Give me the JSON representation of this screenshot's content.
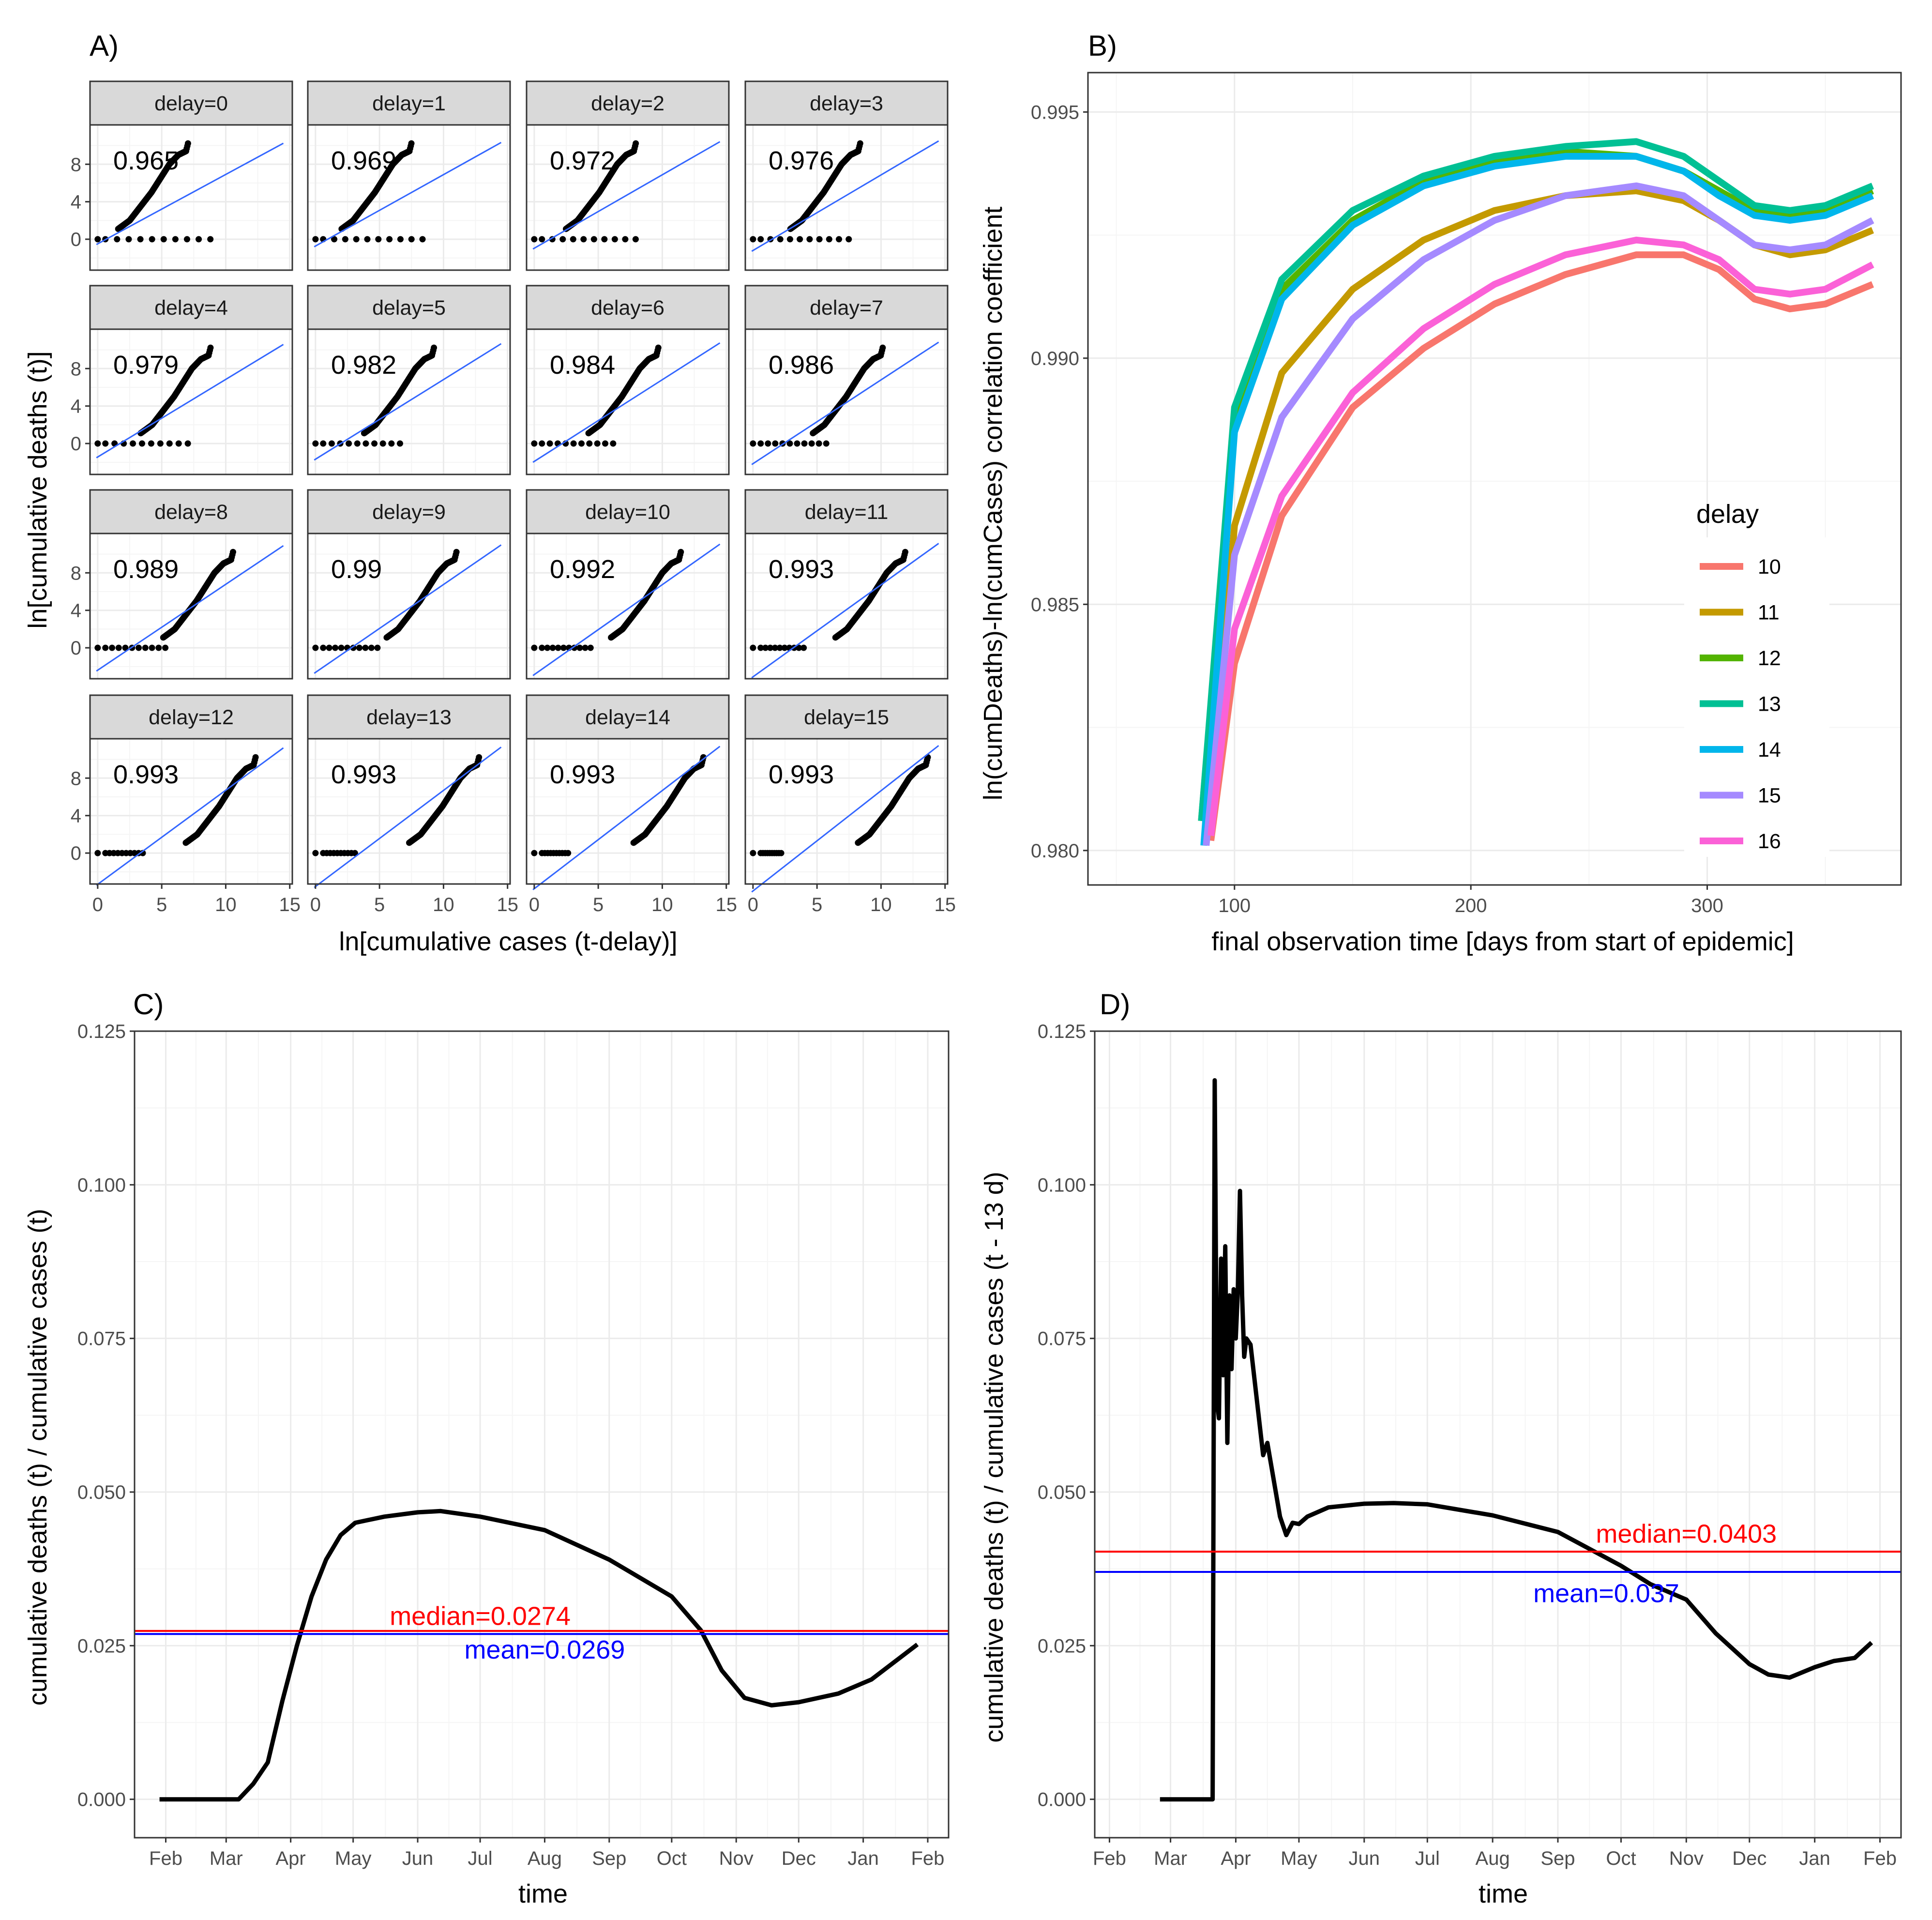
{
  "panel_labels": [
    "A)",
    "B)",
    "C)",
    "D)"
  ],
  "colors": {
    "grid_major": "#ebebeb",
    "grid_minor": "#f5f5f5",
    "frame": "#333333",
    "tick_text": "#4d4d4d",
    "strip_fill": "#d9d9d9",
    "fit_line": "#3366ff",
    "median": "#ff0000",
    "mean": "#0000ff"
  },
  "chart_data": [
    {
      "id": "A",
      "type": "scatter",
      "facet_var": "delay",
      "xlabel": "ln[cumulative cases (t-delay)]",
      "ylabel": "ln[cumulative deaths (t)]",
      "xlim": [
        -0.6,
        15.2
      ],
      "ylim": [
        -3.3,
        12.2
      ],
      "x_ticks": [
        0,
        5,
        10,
        15
      ],
      "y_ticks": [
        0,
        4,
        8
      ],
      "facets": [
        {
          "strip": "delay=0",
          "r": "0.965",
          "delay": 0
        },
        {
          "strip": "delay=1",
          "r": "0.969",
          "delay": 1
        },
        {
          "strip": "delay=2",
          "r": "0.972",
          "delay": 2
        },
        {
          "strip": "delay=3",
          "r": "0.976",
          "delay": 3
        },
        {
          "strip": "delay=4",
          "r": "0.979",
          "delay": 4
        },
        {
          "strip": "delay=5",
          "r": "0.982",
          "delay": 5
        },
        {
          "strip": "delay=6",
          "r": "0.984",
          "delay": 6
        },
        {
          "strip": "delay=7",
          "r": "0.986",
          "delay": 7
        },
        {
          "strip": "delay=8",
          "r": "0.989",
          "delay": 8
        },
        {
          "strip": "delay=9",
          "r": "0.99",
          "delay": 9
        },
        {
          "strip": "delay=10",
          "r": "0.992",
          "delay": 10
        },
        {
          "strip": "delay=11",
          "r": "0.993",
          "delay": 11
        },
        {
          "strip": "delay=12",
          "r": "0.993",
          "delay": 12
        },
        {
          "strip": "delay=13",
          "r": "0.993",
          "delay": 13
        },
        {
          "strip": "delay=14",
          "r": "0.993",
          "delay": 14
        },
        {
          "strip": "delay=15",
          "r": "0.993",
          "delay": 15
        }
      ]
    },
    {
      "id": "B",
      "type": "line",
      "xlabel": "final observation time [days from start of epidemic]",
      "ylabel": "ln(cumDeaths)-ln(cumCases) correlation coefficient",
      "xlim": [
        38,
        382
      ],
      "ylim": [
        0.9793,
        0.9958
      ],
      "x_ticks": [
        100,
        200,
        300
      ],
      "y_ticks": [
        0.98,
        0.985,
        0.99,
        0.995
      ],
      "y_tick_labels": [
        "0.980",
        "0.985",
        "0.990",
        "0.995"
      ],
      "legend_title": "delay",
      "legend_position": "right-inside",
      "series": [
        {
          "name": "10",
          "color": "#f8766d",
          "x": [
            90,
            100,
            120,
            150,
            180,
            210,
            240,
            270,
            290,
            305,
            320,
            335,
            350,
            370
          ],
          "y": [
            0.9802,
            0.9838,
            0.9868,
            0.989,
            0.9902,
            0.9911,
            0.9917,
            0.9921,
            0.9921,
            0.9918,
            0.9912,
            0.991,
            0.9911,
            0.9915
          ]
        },
        {
          "name": "11",
          "color": "#c49a00",
          "x": [
            89,
            100,
            120,
            150,
            180,
            210,
            240,
            270,
            290,
            305,
            320,
            335,
            350,
            370
          ],
          "y": [
            0.9804,
            0.9866,
            0.9897,
            0.9914,
            0.9924,
            0.993,
            0.9933,
            0.9934,
            0.9932,
            0.9928,
            0.9923,
            0.9921,
            0.9922,
            0.9926
          ]
        },
        {
          "name": "12",
          "color": "#53b400",
          "x": [
            86,
            100,
            120,
            150,
            180,
            210,
            240,
            270,
            290,
            305,
            320,
            335,
            350,
            370
          ],
          "y": [
            0.9806,
            0.9887,
            0.9914,
            0.9928,
            0.9936,
            0.994,
            0.9942,
            0.9941,
            0.9938,
            0.9934,
            0.993,
            0.9929,
            0.993,
            0.9934
          ]
        },
        {
          "name": "13",
          "color": "#00c094",
          "x": [
            86,
            100,
            120,
            150,
            180,
            210,
            240,
            270,
            290,
            305,
            320,
            335,
            350,
            370
          ],
          "y": [
            0.9806,
            0.989,
            0.9916,
            0.993,
            0.9937,
            0.9941,
            0.9943,
            0.9944,
            0.9941,
            0.9936,
            0.9931,
            0.993,
            0.9931,
            0.9935
          ]
        },
        {
          "name": "14",
          "color": "#00b6eb",
          "x": [
            87,
            100,
            120,
            150,
            180,
            210,
            240,
            270,
            290,
            305,
            320,
            335,
            350,
            370
          ],
          "y": [
            0.9801,
            0.9885,
            0.9912,
            0.9927,
            0.9935,
            0.9939,
            0.9941,
            0.9941,
            0.9938,
            0.9933,
            0.9929,
            0.9928,
            0.9929,
            0.9933
          ]
        },
        {
          "name": "15",
          "color": "#a58aff",
          "x": [
            88,
            100,
            120,
            150,
            180,
            210,
            240,
            270,
            290,
            305,
            320,
            335,
            350,
            370
          ],
          "y": [
            0.9801,
            0.986,
            0.9888,
            0.9908,
            0.992,
            0.9928,
            0.9933,
            0.9935,
            0.9933,
            0.9928,
            0.9923,
            0.9922,
            0.9923,
            0.9928
          ]
        },
        {
          "name": "16",
          "color": "#fb61d7",
          "x": [
            90,
            100,
            120,
            150,
            180,
            210,
            240,
            270,
            290,
            305,
            320,
            335,
            350,
            370
          ],
          "y": [
            0.9803,
            0.9845,
            0.9872,
            0.9893,
            0.9906,
            0.9915,
            0.9921,
            0.9924,
            0.9923,
            0.992,
            0.9914,
            0.9913,
            0.9914,
            0.9919
          ]
        }
      ]
    },
    {
      "id": "C",
      "type": "line",
      "xlabel": "time",
      "ylabel": "cumulative deaths (t) / cumulative cases (t)",
      "xlim": [
        "2020-01-17",
        "2021-02-11"
      ],
      "ylim": [
        -0.00625,
        0.125
      ],
      "x_ticks": [
        "2020-02-01",
        "2020-03-01",
        "2020-04-01",
        "2020-05-01",
        "2020-06-01",
        "2020-07-01",
        "2020-08-01",
        "2020-09-01",
        "2020-10-01",
        "2020-11-01",
        "2020-12-01",
        "2021-01-01",
        "2021-02-01"
      ],
      "x_tick_labels": [
        "Feb",
        "Mar",
        "Apr",
        "May",
        "Jun",
        "Jul",
        "Aug",
        "Sep",
        "Oct",
        "Nov",
        "Dec",
        "Jan",
        "Feb"
      ],
      "y_ticks": [
        0,
        0.025,
        0.05,
        0.075,
        0.1,
        0.125
      ],
      "y_tick_labels": [
        "0.000",
        "0.025",
        "0.050",
        "0.075",
        "0.100",
        "0.125"
      ],
      "series": [
        {
          "name": "",
          "color": "#000000",
          "x": [
            "2020-01-29",
            "2020-03-07",
            "2020-03-14",
            "2020-03-21",
            "2020-03-28",
            "2020-04-04",
            "2020-04-11",
            "2020-04-18",
            "2020-04-25",
            "2020-05-02",
            "2020-05-09",
            "2020-05-16",
            "2020-06-01",
            "2020-06-12",
            "2020-07-01",
            "2020-08-01",
            "2020-09-01",
            "2020-10-01",
            "2020-10-15",
            "2020-10-25",
            "2020-11-05",
            "2020-11-18",
            "2020-12-01",
            "2020-12-20",
            "2021-01-05",
            "2021-01-27"
          ],
          "y": [
            0,
            0,
            0.0025,
            0.006,
            0.016,
            0.025,
            0.033,
            0.039,
            0.043,
            0.045,
            0.0455,
            0.046,
            0.0467,
            0.0469,
            0.046,
            0.0438,
            0.039,
            0.033,
            0.0275,
            0.021,
            0.0165,
            0.0153,
            0.0158,
            0.0172,
            0.0195,
            0.0252
          ]
        }
      ],
      "hlines": [
        {
          "name": "median",
          "value": 0.0274,
          "label": "median=0.0274",
          "color": "#ff0000",
          "label_x": "2020-07-01",
          "label_y": 0.0298
        },
        {
          "name": "mean",
          "value": 0.0269,
          "label": "mean=0.0269",
          "color": "#0000ff",
          "label_x": "2020-08-01",
          "label_y": 0.0243
        }
      ]
    },
    {
      "id": "D",
      "type": "line",
      "xlabel": "time",
      "ylabel": "cumulative deaths (t) / cumulative cases (t - 13 d)",
      "xlim": [
        "2020-01-25",
        "2021-02-11"
      ],
      "ylim": [
        -0.00625,
        0.125
      ],
      "x_ticks": [
        "2020-02-01",
        "2020-03-01",
        "2020-04-01",
        "2020-05-01",
        "2020-06-01",
        "2020-07-01",
        "2020-08-01",
        "2020-09-01",
        "2020-10-01",
        "2020-11-01",
        "2020-12-01",
        "2021-01-01",
        "2021-02-01"
      ],
      "x_tick_labels": [
        "Feb",
        "Mar",
        "Apr",
        "May",
        "Jun",
        "Jul",
        "Aug",
        "Sep",
        "Oct",
        "Nov",
        "Dec",
        "Jan",
        "Feb"
      ],
      "y_ticks": [
        0,
        0.025,
        0.05,
        0.075,
        0.1,
        0.125
      ],
      "y_tick_labels": [
        "0.000",
        "0.025",
        "0.050",
        "0.075",
        "0.100",
        "0.125"
      ],
      "series": [
        {
          "name": "",
          "color": "#000000",
          "x": [
            "2020-02-25",
            "2020-03-21",
            "2020-03-22",
            "2020-03-23",
            "2020-03-24",
            "2020-03-25",
            "2020-03-26",
            "2020-03-27",
            "2020-03-28",
            "2020-03-29",
            "2020-03-30",
            "2020-03-31",
            "2020-04-01",
            "2020-04-02",
            "2020-04-03",
            "2020-04-04",
            "2020-04-05",
            "2020-04-06",
            "2020-04-08",
            "2020-04-10",
            "2020-04-12",
            "2020-04-14",
            "2020-04-16",
            "2020-04-18",
            "2020-04-20",
            "2020-04-22",
            "2020-04-25",
            "2020-04-28",
            "2020-05-01",
            "2020-05-05",
            "2020-05-15",
            "2020-06-01",
            "2020-06-15",
            "2020-07-01",
            "2020-08-01",
            "2020-09-01",
            "2020-10-01",
            "2020-10-15",
            "2020-11-01",
            "2020-11-15",
            "2020-12-01",
            "2020-12-10",
            "2020-12-20",
            "2021-01-01",
            "2021-01-10",
            "2021-01-20",
            "2021-01-28"
          ],
          "y": [
            0,
            0,
            0.117,
            0.065,
            0.062,
            0.088,
            0.069,
            0.09,
            0.058,
            0.082,
            0.07,
            0.083,
            0.075,
            0.083,
            0.099,
            0.082,
            0.072,
            0.075,
            0.074,
            0.068,
            0.062,
            0.056,
            0.058,
            0.054,
            0.05,
            0.046,
            0.043,
            0.045,
            0.0448,
            0.046,
            0.0475,
            0.0481,
            0.0482,
            0.048,
            0.0462,
            0.0435,
            0.038,
            0.035,
            0.0325,
            0.027,
            0.022,
            0.0203,
            0.0198,
            0.0215,
            0.0225,
            0.023,
            0.0255
          ]
        }
      ],
      "hlines": [
        {
          "name": "median",
          "value": 0.0403,
          "label": "median=0.0403",
          "color": "#ff0000",
          "label_x": "2020-11-01",
          "label_y": 0.0432
        },
        {
          "name": "mean",
          "value": 0.037,
          "label": "mean=0.037",
          "color": "#0000ff",
          "label_x": "2020-09-24",
          "label_y": 0.0335
        }
      ]
    }
  ]
}
